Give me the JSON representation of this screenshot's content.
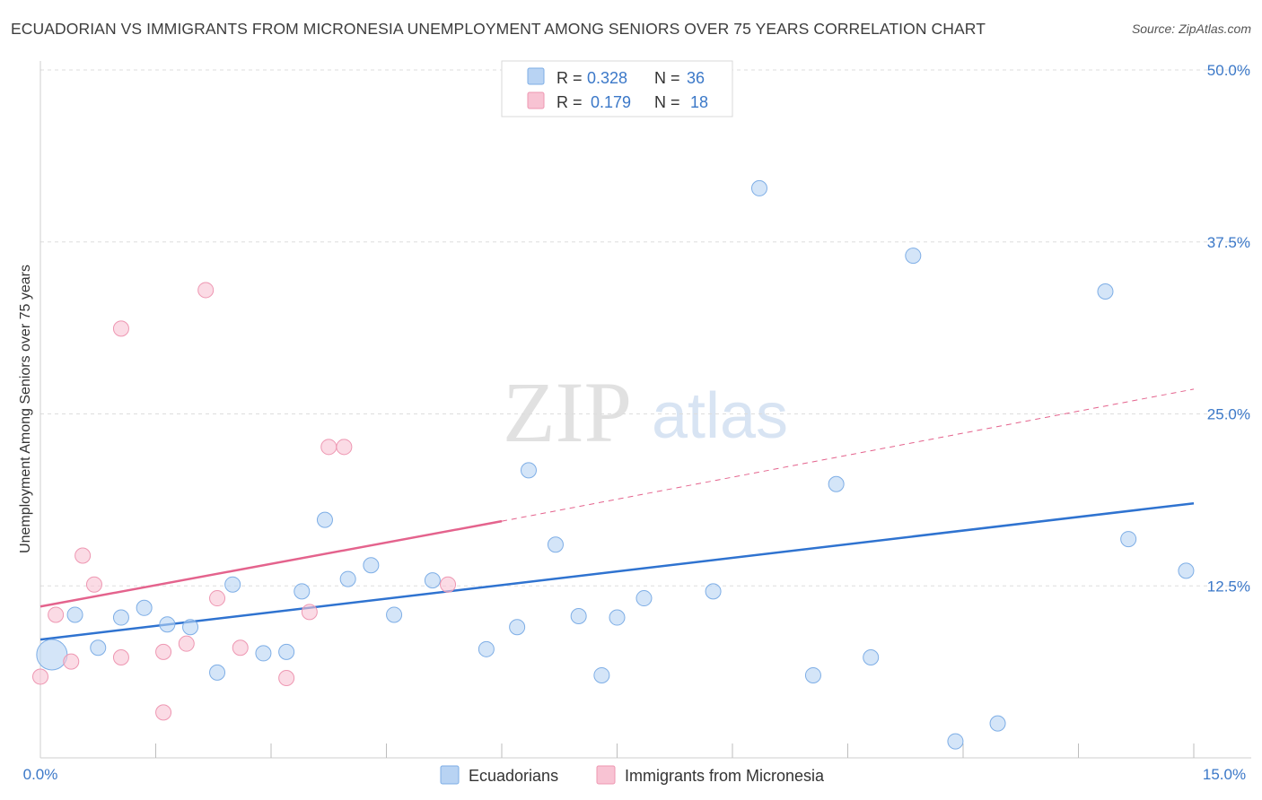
{
  "title": "ECUADORIAN VS IMMIGRANTS FROM MICRONESIA UNEMPLOYMENT AMONG SENIORS OVER 75 YEARS CORRELATION CHART",
  "source": "Source: ZipAtlas.com",
  "watermark": {
    "zip": "ZIP",
    "atlas": "atlas"
  },
  "colors": {
    "blue_fill": "#b8d3f3",
    "blue_stroke": "#7eaee6",
    "blue_line": "#2f73d0",
    "pink_fill": "#f8c3d3",
    "pink_stroke": "#ee97b2",
    "pink_line": "#e4638d",
    "accent_text": "#3b78c8",
    "grid": "#dddddd"
  },
  "legend": {
    "rows": [
      {
        "r_label": "R =",
        "r_value": "0.328",
        "n_label": "N =",
        "n_value": "36",
        "series": "blue"
      },
      {
        "r_label": "R =",
        "r_value": "0.179",
        "n_label": "N =",
        "n_value": "18",
        "series": "pink"
      }
    ]
  },
  "bottom_legend": [
    "Ecuadorians",
    "Immigrants from Micronesia"
  ],
  "chart_data": {
    "type": "scatter",
    "title": "ECUADORIAN VS IMMIGRANTS FROM MICRONESIA UNEMPLOYMENT AMONG SENIORS OVER 75 YEARS CORRELATION CHART",
    "xlabel": "",
    "ylabel": "Unemployment Among Seniors over 75 years",
    "xlim": [
      0,
      15
    ],
    "ylim": [
      0,
      50
    ],
    "x_tick_labels": [
      "0.0%",
      "15.0%"
    ],
    "y_ticks": [
      12.5,
      25.0,
      37.5,
      50.0
    ],
    "y_tick_labels": [
      "12.5%",
      "25.0%",
      "37.5%",
      "50.0%"
    ],
    "grid": true,
    "legend_position": "top-center",
    "series": [
      {
        "name": "Ecuadorians",
        "color": "blue",
        "points": [
          [
            0.15,
            7.5
          ],
          [
            0.45,
            10.4
          ],
          [
            0.75,
            8.0
          ],
          [
            1.05,
            10.2
          ],
          [
            1.35,
            10.9
          ],
          [
            1.65,
            9.7
          ],
          [
            1.95,
            9.5
          ],
          [
            2.3,
            6.2
          ],
          [
            2.5,
            12.6
          ],
          [
            2.9,
            7.6
          ],
          [
            3.2,
            7.7
          ],
          [
            3.4,
            12.1
          ],
          [
            3.7,
            17.3
          ],
          [
            4.0,
            13.0
          ],
          [
            4.3,
            14.0
          ],
          [
            4.6,
            10.4
          ],
          [
            5.1,
            12.9
          ],
          [
            5.8,
            7.9
          ],
          [
            6.2,
            9.5
          ],
          [
            6.35,
            20.9
          ],
          [
            6.7,
            15.5
          ],
          [
            7.0,
            10.3
          ],
          [
            7.3,
            6.0
          ],
          [
            7.5,
            10.2
          ],
          [
            7.85,
            11.6
          ],
          [
            8.75,
            12.1
          ],
          [
            9.35,
            41.4
          ],
          [
            10.05,
            6.0
          ],
          [
            10.35,
            19.9
          ],
          [
            10.8,
            7.3
          ],
          [
            11.35,
            36.5
          ],
          [
            11.9,
            1.2
          ],
          [
            12.45,
            2.5
          ],
          [
            13.85,
            33.9
          ],
          [
            14.15,
            15.9
          ],
          [
            14.9,
            13.6
          ]
        ],
        "trend": {
          "x": [
            0,
            15
          ],
          "y": [
            8.6,
            18.5
          ],
          "style": "solid"
        }
      },
      {
        "name": "Immigrants from Micronesia",
        "color": "pink",
        "points": [
          [
            0.0,
            5.9
          ],
          [
            0.2,
            10.4
          ],
          [
            0.4,
            7.0
          ],
          [
            0.55,
            14.7
          ],
          [
            0.7,
            12.6
          ],
          [
            1.05,
            31.2
          ],
          [
            1.05,
            7.3
          ],
          [
            1.6,
            7.7
          ],
          [
            1.6,
            3.3
          ],
          [
            1.9,
            8.3
          ],
          [
            2.15,
            34.0
          ],
          [
            2.3,
            11.6
          ],
          [
            2.6,
            8.0
          ],
          [
            3.2,
            5.8
          ],
          [
            3.5,
            10.6
          ],
          [
            3.75,
            22.6
          ],
          [
            3.95,
            22.6
          ],
          [
            5.3,
            12.6
          ]
        ],
        "trend": {
          "x": [
            0,
            6
          ],
          "y": [
            11.0,
            17.2
          ],
          "style": "solid"
        },
        "trend_extension": {
          "x": [
            6,
            15
          ],
          "y": [
            17.2,
            26.8
          ],
          "style": "dashed"
        }
      }
    ]
  }
}
